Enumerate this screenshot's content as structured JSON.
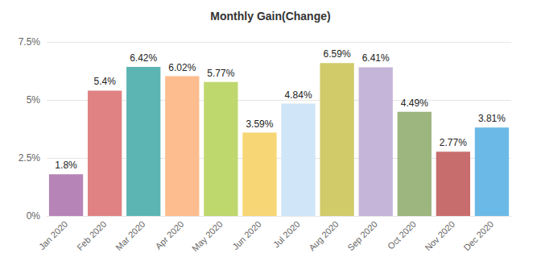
{
  "chart_data": {
    "type": "bar",
    "title": "Monthly Gain(Change)",
    "categories": [
      "Jan 2020",
      "Feb 2020",
      "Mar 2020",
      "Apr 2020",
      "May 2020",
      "Jun 2020",
      "Jul 2020",
      "Aug 2020",
      "Sep 2020",
      "Oct 2020",
      "Nov 2020",
      "Dec 2020"
    ],
    "values": [
      1.8,
      5.4,
      6.42,
      6.02,
      5.77,
      3.59,
      4.84,
      6.59,
      6.41,
      4.49,
      2.77,
      3.81
    ],
    "value_labels": [
      "1.8%",
      "5.4%",
      "6.42%",
      "6.02%",
      "5.77%",
      "3.59%",
      "4.84%",
      "6.59%",
      "6.41%",
      "4.49%",
      "2.77%",
      "3.81%"
    ],
    "colors": [
      "#b784b7",
      "#e08283",
      "#5cb5b3",
      "#fdbd8f",
      "#bfd86e",
      "#f7d775",
      "#d0e6f8",
      "#d1cb6a",
      "#c5b5d9",
      "#9db57f",
      "#c86d6d",
      "#6bb9e6"
    ],
    "ylim": [
      0,
      7.5
    ],
    "yticks": [
      {
        "value": 0,
        "label": "0%"
      },
      {
        "value": 2.5,
        "label": "2.5%"
      },
      {
        "value": 5,
        "label": "5%"
      },
      {
        "value": 7.5,
        "label": "7.5%"
      }
    ],
    "grid": true,
    "data_labels": true
  }
}
